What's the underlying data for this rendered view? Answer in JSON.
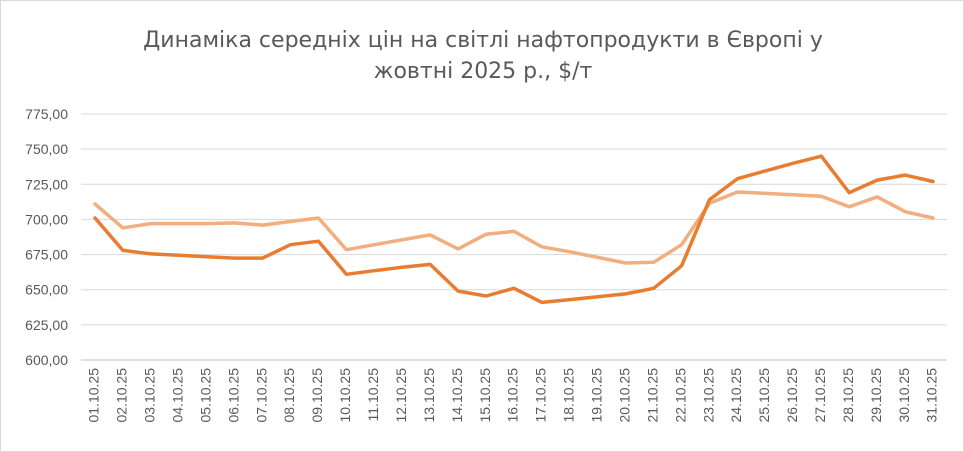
{
  "chart_data": {
    "type": "line",
    "title": "Динаміка середніх цін на світлі нафтопродукти в Європі у жовтні 2025 р., $/т",
    "xlabel": "",
    "ylabel": "",
    "ylim": [
      600,
      775
    ],
    "yticks": [
      "600,00",
      "625,00",
      "650,00",
      "675,00",
      "700,00",
      "725,00",
      "750,00",
      "775,00"
    ],
    "categories": [
      "01.10.25",
      "02.10.25",
      "03.10.25",
      "04.10.25",
      "05.10.25",
      "06.10.25",
      "07.10.25",
      "08.10.25",
      "09.10.25",
      "10.10.25",
      "11.10.25",
      "12.10.25",
      "13.10.25",
      "14.10.25",
      "15.10.25",
      "16.10.25",
      "17.10.25",
      "18.10.25",
      "19.10.25",
      "20.10.25",
      "21.10.25",
      "22.10.25",
      "23.10.25",
      "24.10.25",
      "25.10.25",
      "26.10.25",
      "27.10.25",
      "28.10.25",
      "29.10.25",
      "30.10.25",
      "31.10.25"
    ],
    "grid": true,
    "legend": "none",
    "series": [
      {
        "color": "#E87D32",
        "values": [
          701,
          678,
          675.5,
          674.5,
          673.5,
          672.5,
          672.5,
          682,
          684.5,
          661,
          663.5,
          666,
          668,
          649,
          645.5,
          651,
          641,
          643,
          645,
          647,
          651,
          667,
          714,
          729,
          734.5,
          740,
          745,
          719,
          728,
          731.5,
          727
        ]
      },
      {
        "color": "#F2AE7E",
        "values": [
          711,
          694,
          697,
          697,
          697,
          697.5,
          696,
          698.5,
          701,
          678.5,
          682,
          685.5,
          689,
          679,
          689.5,
          691.5,
          680.5,
          677,
          673,
          669,
          669.5,
          682,
          711.5,
          719.5,
          718.5,
          717.5,
          716.5,
          709,
          716,
          705.5,
          701
        ]
      }
    ]
  }
}
